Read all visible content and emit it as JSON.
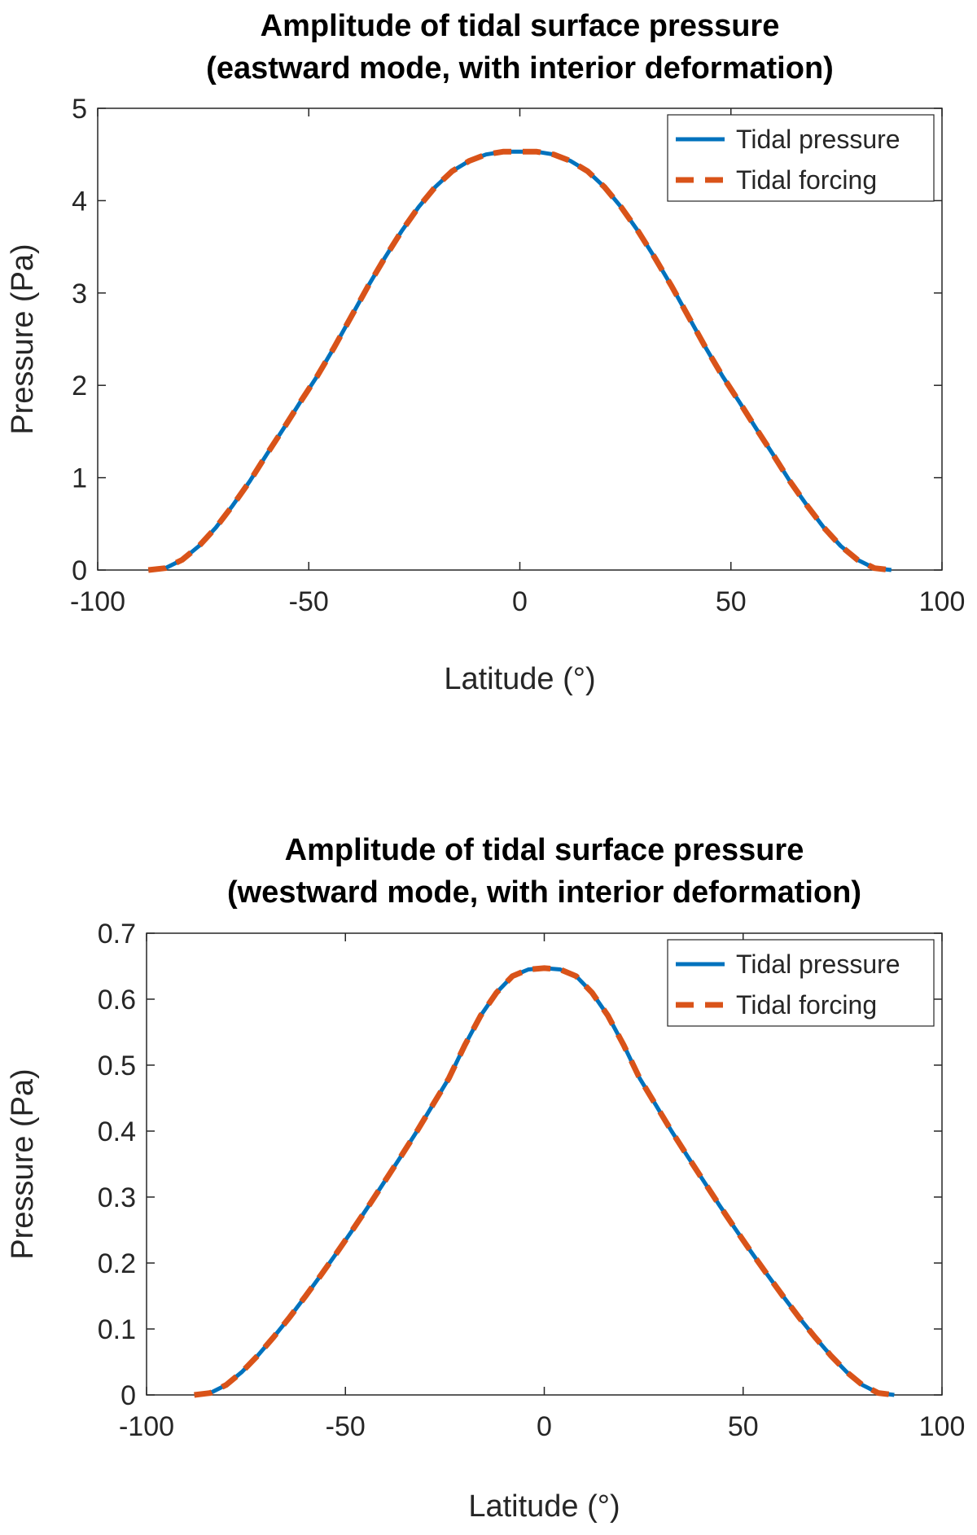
{
  "chart_data": [
    {
      "type": "line",
      "title_lines": [
        "Amplitude of tidal surface pressure",
        "(eastward mode, with interior deformation)"
      ],
      "xlabel": "Latitude (°)",
      "ylabel": "Pressure (Pa)",
      "xlim": [
        -100,
        100
      ],
      "ylim": [
        0,
        5
      ],
      "xticks": [
        -100,
        -50,
        0,
        50,
        100
      ],
      "xtick_labels": [
        "-100",
        "-50",
        "0",
        "50",
        "100"
      ],
      "yticks": [
        0,
        1,
        2,
        3,
        4,
        5
      ],
      "ytick_labels": [
        "0",
        "1",
        "2",
        "3",
        "4",
        "5"
      ],
      "legend_position": "top-right",
      "series": [
        {
          "name": "Tidal pressure",
          "style": "solid",
          "color": "#0072BD",
          "x": [
            -88,
            -84,
            -80,
            -76,
            -72,
            -68,
            -64,
            -60,
            -56,
            -52,
            -48,
            -44,
            -40,
            -36,
            -32,
            -28,
            -24,
            -20,
            -16,
            -12,
            -8,
            -4,
            0,
            4,
            8,
            12,
            16,
            20,
            24,
            28,
            32,
            36,
            40,
            44,
            48,
            52,
            56,
            60,
            64,
            68,
            72,
            76,
            80,
            84,
            88
          ],
          "y": [
            0.0,
            0.02,
            0.11,
            0.26,
            0.46,
            0.7,
            0.96,
            1.25,
            1.53,
            1.82,
            2.1,
            2.41,
            2.74,
            3.07,
            3.38,
            3.67,
            3.93,
            4.15,
            4.32,
            4.43,
            4.5,
            4.53,
            4.53,
            4.53,
            4.5,
            4.43,
            4.32,
            4.15,
            3.93,
            3.67,
            3.38,
            3.07,
            2.74,
            2.41,
            2.1,
            1.82,
            1.53,
            1.25,
            0.96,
            0.7,
            0.46,
            0.26,
            0.11,
            0.02,
            0.0
          ]
        },
        {
          "name": "Tidal forcing",
          "style": "dashed",
          "color": "#D95319",
          "x": [
            -88,
            -84,
            -80,
            -76,
            -72,
            -68,
            -64,
            -60,
            -56,
            -52,
            -48,
            -44,
            -40,
            -36,
            -32,
            -28,
            -24,
            -20,
            -16,
            -12,
            -8,
            -4,
            0,
            4,
            8,
            12,
            16,
            20,
            24,
            28,
            32,
            36,
            40,
            44,
            48,
            52,
            56,
            60,
            64,
            68,
            72,
            76,
            80,
            84,
            88
          ],
          "y": [
            0.0,
            0.02,
            0.11,
            0.26,
            0.46,
            0.7,
            0.96,
            1.25,
            1.53,
            1.82,
            2.1,
            2.41,
            2.74,
            3.07,
            3.38,
            3.67,
            3.93,
            4.15,
            4.32,
            4.43,
            4.5,
            4.53,
            4.53,
            4.53,
            4.5,
            4.43,
            4.32,
            4.15,
            3.93,
            3.67,
            3.38,
            3.07,
            2.74,
            2.41,
            2.1,
            1.82,
            1.53,
            1.25,
            0.96,
            0.7,
            0.46,
            0.26,
            0.11,
            0.02,
            0.0
          ]
        }
      ]
    },
    {
      "type": "line",
      "title_lines": [
        "Amplitude of tidal surface pressure",
        "(westward mode, with interior deformation)"
      ],
      "xlabel": "Latitude (°)",
      "ylabel": "Pressure (Pa)",
      "xlim": [
        -100,
        100
      ],
      "ylim": [
        0,
        0.7
      ],
      "xticks": [
        -100,
        -50,
        0,
        50,
        100
      ],
      "xtick_labels": [
        "-100",
        "-50",
        "0",
        "50",
        "100"
      ],
      "yticks": [
        0,
        0.1,
        0.2,
        0.3,
        0.4,
        0.5,
        0.6,
        0.7
      ],
      "ytick_labels": [
        "0",
        "0.1",
        "0.2",
        "0.3",
        "0.4",
        "0.5",
        "0.6",
        "0.7"
      ],
      "legend_position": "top-right",
      "series": [
        {
          "name": "Tidal pressure",
          "style": "solid",
          "color": "#0072BD",
          "x": [
            -88,
            -84,
            -80,
            -76,
            -72,
            -68,
            -64,
            -60,
            -56,
            -52,
            -48,
            -44,
            -40,
            -36,
            -32,
            -28,
            -24,
            -20,
            -16,
            -12,
            -8,
            -4,
            0,
            4,
            8,
            12,
            16,
            20,
            24,
            28,
            32,
            36,
            40,
            44,
            48,
            52,
            56,
            60,
            64,
            68,
            72,
            76,
            80,
            84,
            88
          ],
          "y": [
            0.0,
            0.003,
            0.015,
            0.035,
            0.06,
            0.088,
            0.118,
            0.15,
            0.183,
            0.217,
            0.252,
            0.288,
            0.325,
            0.362,
            0.4,
            0.44,
            0.48,
            0.53,
            0.575,
            0.61,
            0.635,
            0.645,
            0.647,
            0.645,
            0.635,
            0.61,
            0.575,
            0.53,
            0.48,
            0.44,
            0.4,
            0.362,
            0.325,
            0.288,
            0.252,
            0.217,
            0.183,
            0.15,
            0.118,
            0.088,
            0.06,
            0.035,
            0.015,
            0.003,
            0.0
          ]
        },
        {
          "name": "Tidal forcing",
          "style": "dashed",
          "color": "#D95319",
          "x": [
            -88,
            -84,
            -80,
            -76,
            -72,
            -68,
            -64,
            -60,
            -56,
            -52,
            -48,
            -44,
            -40,
            -36,
            -32,
            -28,
            -24,
            -20,
            -16,
            -12,
            -8,
            -4,
            0,
            4,
            8,
            12,
            16,
            20,
            24,
            28,
            32,
            36,
            40,
            44,
            48,
            52,
            56,
            60,
            64,
            68,
            72,
            76,
            80,
            84,
            88
          ],
          "y": [
            0.0,
            0.003,
            0.015,
            0.035,
            0.06,
            0.088,
            0.118,
            0.15,
            0.183,
            0.217,
            0.252,
            0.288,
            0.325,
            0.362,
            0.4,
            0.44,
            0.48,
            0.53,
            0.575,
            0.61,
            0.635,
            0.645,
            0.647,
            0.645,
            0.635,
            0.61,
            0.575,
            0.53,
            0.48,
            0.44,
            0.4,
            0.362,
            0.325,
            0.288,
            0.252,
            0.217,
            0.183,
            0.15,
            0.118,
            0.088,
            0.06,
            0.035,
            0.015,
            0.003,
            0.0
          ]
        }
      ]
    }
  ]
}
